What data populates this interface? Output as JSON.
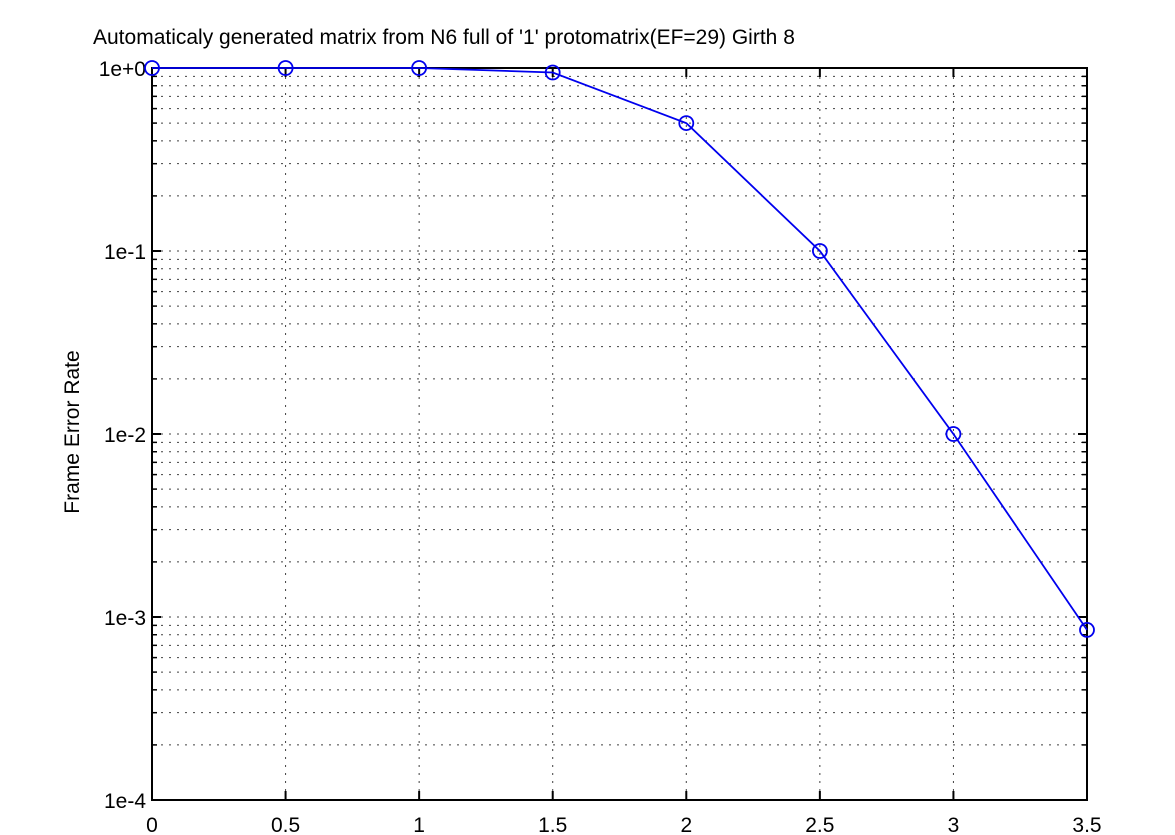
{
  "figure": {
    "background": "#ffffff"
  },
  "chart_data": {
    "type": "line",
    "title": "Automaticaly generated matrix from N6 full of '1' protomatrix(EF=29) Girth 8",
    "xlabel": "",
    "ylabel": "Frame Error Rate",
    "x": [
      0,
      0.5,
      1,
      1.5,
      2,
      2.5,
      3,
      3.5
    ],
    "y": [
      1.0,
      1.0,
      1.0,
      0.945,
      0.5,
      0.1,
      0.01,
      0.00085
    ],
    "xlim": [
      0,
      3.5
    ],
    "ylim": [
      0.0001,
      1
    ],
    "yscale": "log",
    "x_tick_values": [
      0,
      0.5,
      1,
      1.5,
      2,
      2.5,
      3,
      3.5
    ],
    "x_tick_labels": [
      "0",
      "0.5",
      "1",
      "1.5",
      "2",
      "2.5",
      "3",
      "3.5"
    ],
    "y_tick_values": [
      1,
      0.1,
      0.01,
      0.001,
      0.0001
    ],
    "y_tick_labels": [
      "1e+0",
      "1e-1",
      "1e-2",
      "1e-3",
      "1e-4"
    ],
    "grid": "on",
    "minor_grid": "on",
    "grid_style": "dotted",
    "legend": "none",
    "line_color": "#0000EE",
    "marker": "o",
    "marker_color": "#0000EE",
    "axis_color": "#000000",
    "grid_color": "#404040"
  }
}
